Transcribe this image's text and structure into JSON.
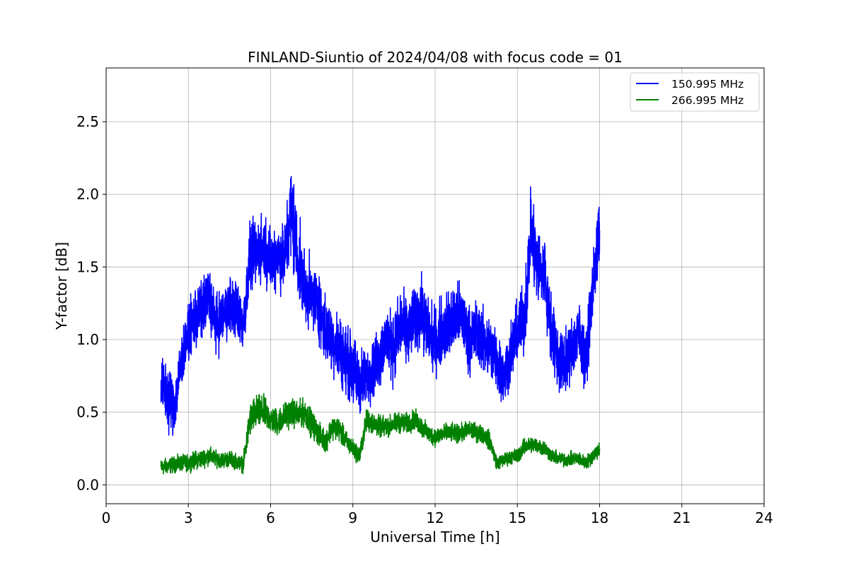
{
  "chart_data": {
    "type": "line",
    "title": "FINLAND-Siuntio of 2024/04/08 with focus code = 01",
    "xlabel": "Universal Time [h]",
    "ylabel": "Y-factor [dB]",
    "xlim": [
      0,
      24
    ],
    "ylim": [
      -0.13,
      2.87
    ],
    "xticks": [
      0,
      3,
      6,
      9,
      12,
      15,
      18,
      21,
      24
    ],
    "xtick_labels": [
      "0",
      "3",
      "6",
      "9",
      "12",
      "15",
      "18",
      "21",
      "24"
    ],
    "yticks": [
      0.0,
      0.5,
      1.0,
      1.5,
      2.0,
      2.5
    ],
    "ytick_labels": [
      "0.0",
      "0.5",
      "1.0",
      "1.5",
      "2.0",
      "2.5"
    ],
    "grid": true,
    "legend_position": "top-right",
    "series": [
      {
        "name": "150.995 MHz",
        "color": "#0000ff",
        "x": [
          2.0,
          2.25,
          2.5,
          2.75,
          3.0,
          3.25,
          3.5,
          3.75,
          4.0,
          4.25,
          4.5,
          4.75,
          5.0,
          5.25,
          5.5,
          5.75,
          6.0,
          6.25,
          6.5,
          6.75,
          7.0,
          7.25,
          7.5,
          7.75,
          8.0,
          8.25,
          8.5,
          8.75,
          9.0,
          9.25,
          9.5,
          9.75,
          10.0,
          10.25,
          10.5,
          10.75,
          11.0,
          11.25,
          11.5,
          11.75,
          12.0,
          12.25,
          12.5,
          12.75,
          13.0,
          13.25,
          13.5,
          13.75,
          14.0,
          14.25,
          14.5,
          14.75,
          15.0,
          15.25,
          15.5,
          15.75,
          16.0,
          16.25,
          16.5,
          16.75,
          17.0,
          17.25,
          17.5,
          17.75,
          18.0
        ],
        "y": [
          0.7,
          0.6,
          0.55,
          0.85,
          1.05,
          1.15,
          1.2,
          1.3,
          1.1,
          1.15,
          1.25,
          1.2,
          1.1,
          1.55,
          1.6,
          1.65,
          1.55,
          1.6,
          1.55,
          1.9,
          1.55,
          1.35,
          1.3,
          1.25,
          1.05,
          1.0,
          0.95,
          0.85,
          0.8,
          0.7,
          0.75,
          0.8,
          0.9,
          1.0,
          0.95,
          1.1,
          1.05,
          1.15,
          1.2,
          1.05,
          1.0,
          1.05,
          1.1,
          1.15,
          1.15,
          1.0,
          1.05,
          1.0,
          0.95,
          0.85,
          0.75,
          0.9,
          1.05,
          1.15,
          1.75,
          1.5,
          1.45,
          1.05,
          0.85,
          0.85,
          0.95,
          1.05,
          0.85,
          1.35,
          1.75
        ],
        "spread": [
          0.25,
          0.3,
          0.25,
          0.25,
          0.2,
          0.3,
          0.25,
          0.28,
          0.25,
          0.25,
          0.25,
          0.25,
          0.25,
          0.3,
          0.28,
          0.3,
          0.28,
          0.3,
          0.3,
          0.45,
          0.35,
          0.3,
          0.28,
          0.3,
          0.3,
          0.28,
          0.3,
          0.3,
          0.3,
          0.3,
          0.25,
          0.25,
          0.28,
          0.3,
          0.3,
          0.3,
          0.28,
          0.3,
          0.3,
          0.28,
          0.28,
          0.3,
          0.3,
          0.3,
          0.28,
          0.28,
          0.28,
          0.28,
          0.28,
          0.28,
          0.25,
          0.25,
          0.28,
          0.3,
          0.4,
          0.35,
          0.3,
          0.3,
          0.28,
          0.25,
          0.28,
          0.28,
          0.25,
          0.3,
          0.3
        ]
      },
      {
        "name": "266.995 MHz",
        "color": "#008000",
        "x": [
          2.0,
          2.25,
          2.5,
          2.75,
          3.0,
          3.25,
          3.5,
          3.75,
          4.0,
          4.25,
          4.5,
          4.75,
          5.0,
          5.25,
          5.5,
          5.75,
          6.0,
          6.25,
          6.5,
          6.75,
          7.0,
          7.25,
          7.5,
          7.75,
          8.0,
          8.25,
          8.5,
          8.75,
          9.0,
          9.25,
          9.5,
          9.75,
          10.0,
          10.25,
          10.5,
          10.75,
          11.0,
          11.25,
          11.5,
          11.75,
          12.0,
          12.25,
          12.5,
          12.75,
          13.0,
          13.25,
          13.5,
          13.75,
          14.0,
          14.25,
          14.5,
          14.75,
          15.0,
          15.25,
          15.5,
          15.75,
          16.0,
          16.25,
          16.5,
          16.75,
          17.0,
          17.25,
          17.5,
          17.75,
          18.0
        ],
        "y": [
          0.12,
          0.13,
          0.14,
          0.15,
          0.15,
          0.17,
          0.18,
          0.2,
          0.18,
          0.17,
          0.18,
          0.16,
          0.14,
          0.45,
          0.5,
          0.5,
          0.45,
          0.43,
          0.47,
          0.5,
          0.48,
          0.5,
          0.42,
          0.35,
          0.3,
          0.4,
          0.38,
          0.3,
          0.25,
          0.2,
          0.45,
          0.42,
          0.4,
          0.4,
          0.42,
          0.43,
          0.42,
          0.45,
          0.4,
          0.35,
          0.33,
          0.35,
          0.36,
          0.35,
          0.36,
          0.38,
          0.36,
          0.35,
          0.3,
          0.15,
          0.17,
          0.19,
          0.2,
          0.26,
          0.28,
          0.27,
          0.25,
          0.2,
          0.18,
          0.17,
          0.18,
          0.18,
          0.15,
          0.2,
          0.25
        ],
        "spread": [
          0.07,
          0.07,
          0.07,
          0.07,
          0.07,
          0.08,
          0.08,
          0.08,
          0.07,
          0.07,
          0.07,
          0.07,
          0.07,
          0.15,
          0.15,
          0.14,
          0.12,
          0.12,
          0.12,
          0.12,
          0.12,
          0.12,
          0.12,
          0.1,
          0.1,
          0.1,
          0.1,
          0.09,
          0.08,
          0.08,
          0.1,
          0.1,
          0.09,
          0.09,
          0.09,
          0.09,
          0.09,
          0.09,
          0.09,
          0.08,
          0.08,
          0.08,
          0.08,
          0.08,
          0.08,
          0.08,
          0.08,
          0.08,
          0.08,
          0.06,
          0.06,
          0.06,
          0.07,
          0.07,
          0.07,
          0.07,
          0.07,
          0.06,
          0.06,
          0.06,
          0.06,
          0.06,
          0.06,
          0.07,
          0.07
        ]
      }
    ]
  }
}
